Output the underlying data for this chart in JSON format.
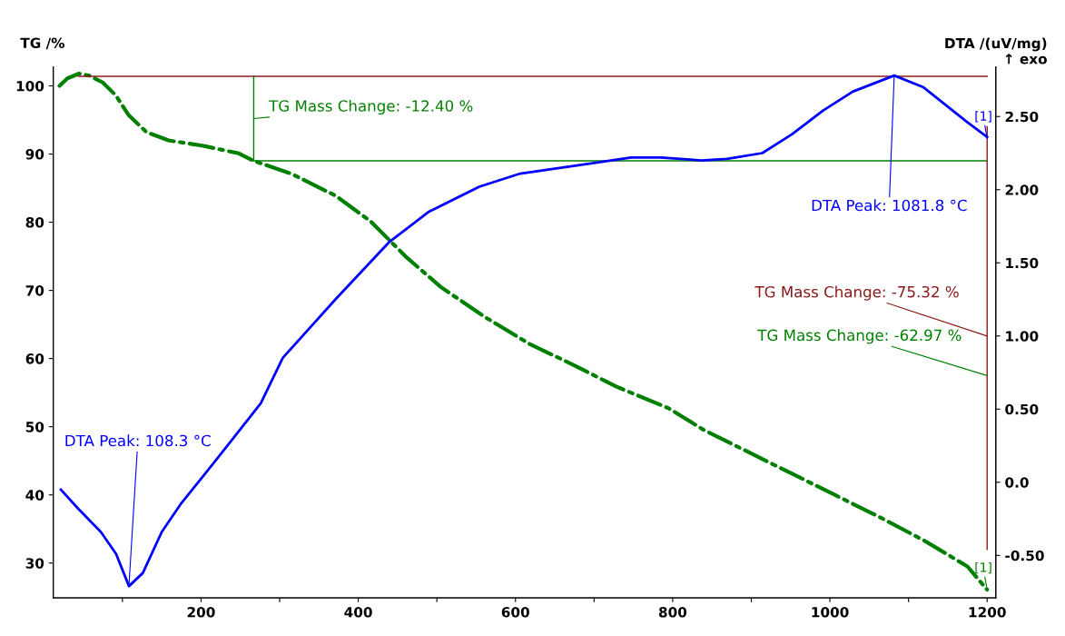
{
  "chart_data": {
    "type": "line",
    "ylabel": "TG /%",
    "y2label": "DTA /(uV/mg)\n↑ exo",
    "xlim": [
      12,
      1211
    ],
    "xticks": [
      {
        "value": 100,
        "label": null
      },
      200,
      {
        "value": 300,
        "label": null
      },
      400,
      {
        "value": 500,
        "label": null
      },
      600,
      {
        "value": 700,
        "label": null
      },
      800,
      {
        "value": 900,
        "label": null
      },
      1000,
      {
        "value": 1100,
        "label": null
      },
      1200
    ],
    "ylim": [
      24.9,
      102.8
    ],
    "yticks": [
      30,
      40,
      50,
      60,
      70,
      80,
      90,
      100
    ],
    "y2lim": [
      -0.79,
      2.84
    ],
    "y2ticks": [
      {
        "value": -0.5,
        "label": "-0.50"
      },
      {
        "value": 0,
        "label": "0.0"
      },
      {
        "value": 0.5,
        "label": "0.50"
      },
      {
        "value": 1,
        "label": "1.00"
      },
      {
        "value": 1.5,
        "label": "1.50"
      },
      {
        "value": 2,
        "label": "2.00"
      },
      {
        "value": 2.5,
        "label": "2.50"
      }
    ],
    "grid": false,
    "legend": false,
    "marker": "none",
    "series": [
      {
        "color": "#008000",
        "line_style": "dashdot",
        "x": [
          20,
          30,
          44.7,
          58,
          74.9,
          91.6,
          108,
          130.7,
          158.7,
          203,
          248,
          267,
          315,
          371,
          416,
          460,
          505,
          561,
          617,
          673,
          728,
          795,
          840,
          896,
          952,
          1008,
          1064,
          1120,
          1175,
          1200
        ],
        "values": [
          100.0,
          101.1,
          101.8,
          101.5,
          100.5,
          98.6,
          95.7,
          93.2,
          92.0,
          91.2,
          90.1,
          89.0,
          87.1,
          83.9,
          80.1,
          75.0,
          70.5,
          66.1,
          62.2,
          59.1,
          55.9,
          52.7,
          49.5,
          46.3,
          43.1,
          39.9,
          36.7,
          33.3,
          29.5,
          26.1
        ]
      },
      {
        "color": "#0000ff",
        "line_style": "solid",
        "axis": "y2",
        "x": [
          21.7,
          43.6,
          72.6,
          92,
          108.3,
          126,
          150,
          174,
          204,
          238,
          276,
          304,
          371,
          439,
          490,
          554,
          606,
          696,
          747,
          785,
          837,
          869,
          914,
          952,
          991,
          1029,
          1081.8,
          1119,
          1175,
          1200
        ],
        "values": [
          -0.05,
          -0.18,
          -0.34,
          -0.49,
          -0.71,
          -0.62,
          -0.34,
          -0.15,
          0.05,
          0.28,
          0.54,
          0.85,
          1.25,
          1.64,
          1.85,
          2.02,
          2.11,
          2.18,
          2.22,
          2.22,
          2.2,
          2.21,
          2.25,
          2.38,
          2.54,
          2.67,
          2.78,
          2.7,
          2.46,
          2.36
        ]
      },
      {
        "color": "#8b1a1a",
        "line_style": "solid",
        "x": [
          44,
          1200
        ],
        "values": [
          101.4,
          101.4
        ]
      },
      {
        "color": "#008000",
        "line_style": "solid",
        "x": [
          267,
          1200
        ],
        "values": [
          89.0,
          89.0
        ]
      },
      {
        "color": "#008000",
        "line_style": "solid",
        "x": [
          267,
          267
        ],
        "values": [
          101.4,
          89.0
        ]
      },
      {
        "color": "#8b1a1a",
        "line_style": "solid",
        "x": [
          1200,
          1200
        ],
        "values": [
          94.0,
          32.0
        ]
      }
    ],
    "annotations": [
      {
        "text": "TG Mass Change: -12.40 %",
        "x": 267,
        "y": 95.2
      },
      {
        "text": "TG Mass Change: -75.32 %",
        "x": 1200,
        "y": 63.3
      },
      {
        "text": "TG Mass Change: -62.97 %",
        "x": 1200,
        "y": 57.5
      },
      {
        "text": "DTA Peak: 108.3 °C",
        "x": 108.3,
        "y": 26.7
      },
      {
        "text": "DTA Peak: 1081.8 °C",
        "x": 1081.8,
        "y": 101.5
      },
      {
        "text": "[1]",
        "x": 1200,
        "y": 92.3
      },
      {
        "text": "[1]",
        "x": 1200,
        "y": 26.1
      }
    ]
  }
}
